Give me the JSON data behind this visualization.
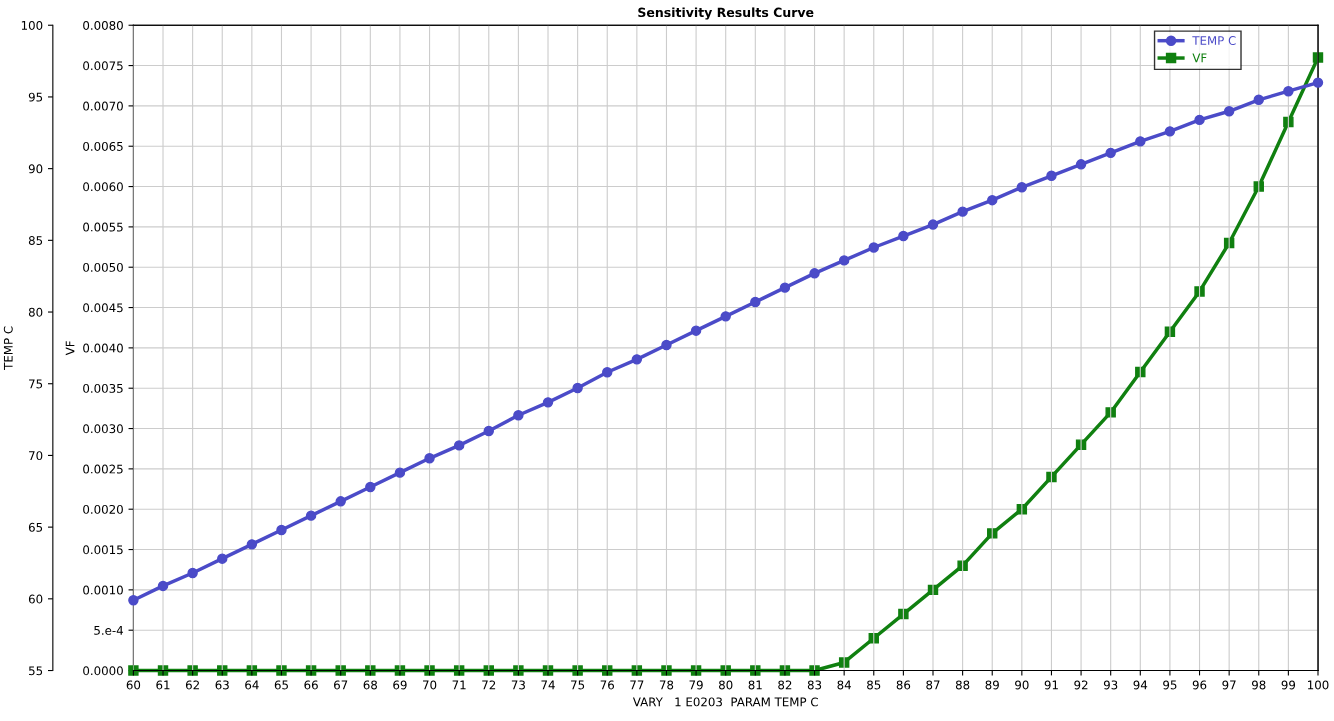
{
  "chart_data": {
    "type": "line",
    "title": "Sensitivity Results Curve",
    "xlabel": "VARY   1 E0203  PARAM TEMP C",
    "ylabel": "TEMP C",
    "y2label": "VF",
    "x": [
      60,
      61,
      62,
      63,
      64,
      65,
      66,
      67,
      68,
      69,
      70,
      71,
      72,
      73,
      74,
      75,
      76,
      77,
      78,
      79,
      80,
      81,
      82,
      83,
      84,
      85,
      86,
      87,
      88,
      89,
      90,
      91,
      92,
      93,
      94,
      95,
      96,
      97,
      98,
      99,
      100
    ],
    "series": [
      {
        "name": "TEMP C",
        "color": "#4b4bc8",
        "marker": "circle",
        "values": [
          59.9,
          60.9,
          61.8,
          62.8,
          63.8,
          64.8,
          65.8,
          66.8,
          67.8,
          68.8,
          69.8,
          70.7,
          71.7,
          72.8,
          73.7,
          74.7,
          75.8,
          76.7,
          77.7,
          78.7,
          79.7,
          80.7,
          81.7,
          82.7,
          83.6,
          84.5,
          85.3,
          86.1,
          87.0,
          87.8,
          88.7,
          89.5,
          90.3,
          91.1,
          91.9,
          92.6,
          93.4,
          94.0,
          94.8,
          95.4,
          96.0
        ]
      },
      {
        "name": "VF",
        "color": "#108010",
        "marker": "square",
        "axis": "y2",
        "values": [
          0,
          0,
          0,
          0,
          0,
          0,
          0,
          0,
          0,
          0,
          0,
          0,
          0,
          0,
          0,
          0,
          0,
          0,
          0,
          0,
          0,
          0,
          0,
          0,
          0.0001,
          0.0004,
          0.0007,
          0.001,
          0.0013,
          0.0017,
          0.002,
          0.0024,
          0.0028,
          0.0032,
          0.0037,
          0.0042,
          0.0047,
          0.0053,
          0.006,
          0.0068,
          0.0076
        ]
      }
    ],
    "xlim": [
      60,
      100
    ],
    "xticks": [
      60,
      61,
      62,
      63,
      64,
      65,
      66,
      67,
      68,
      69,
      70,
      71,
      72,
      73,
      74,
      75,
      76,
      77,
      78,
      79,
      80,
      81,
      82,
      83,
      84,
      85,
      86,
      87,
      88,
      89,
      90,
      91,
      92,
      93,
      94,
      95,
      96,
      97,
      98,
      99,
      100
    ],
    "ylim": [
      55,
      100
    ],
    "yticks": [
      55,
      60,
      65,
      70,
      75,
      80,
      85,
      90,
      95,
      100
    ],
    "y2lim": [
      0,
      0.008
    ],
    "y2ticks": [
      {
        "value": 0,
        "label": "0.0000"
      },
      {
        "value": 0.0005,
        "label": "5.e-4"
      },
      {
        "value": 0.001,
        "label": "0.0010"
      },
      {
        "value": 0.0015,
        "label": "0.0015"
      },
      {
        "value": 0.002,
        "label": "0.0020"
      },
      {
        "value": 0.0025,
        "label": "0.0025"
      },
      {
        "value": 0.003,
        "label": "0.0030"
      },
      {
        "value": 0.0035,
        "label": "0.0035"
      },
      {
        "value": 0.004,
        "label": "0.0040"
      },
      {
        "value": 0.0045,
        "label": "0.0045"
      },
      {
        "value": 0.005,
        "label": "0.0050"
      },
      {
        "value": 0.0055,
        "label": "0.0055"
      },
      {
        "value": 0.006,
        "label": "0.0060"
      },
      {
        "value": 0.0065,
        "label": "0.0065"
      },
      {
        "value": 0.007,
        "label": "0.0070"
      },
      {
        "value": 0.0075,
        "label": "0.0075"
      },
      {
        "value": 0.008,
        "label": "0.0080"
      }
    ],
    "grid": true,
    "legend": "top right",
    "line_style": "solid"
  }
}
